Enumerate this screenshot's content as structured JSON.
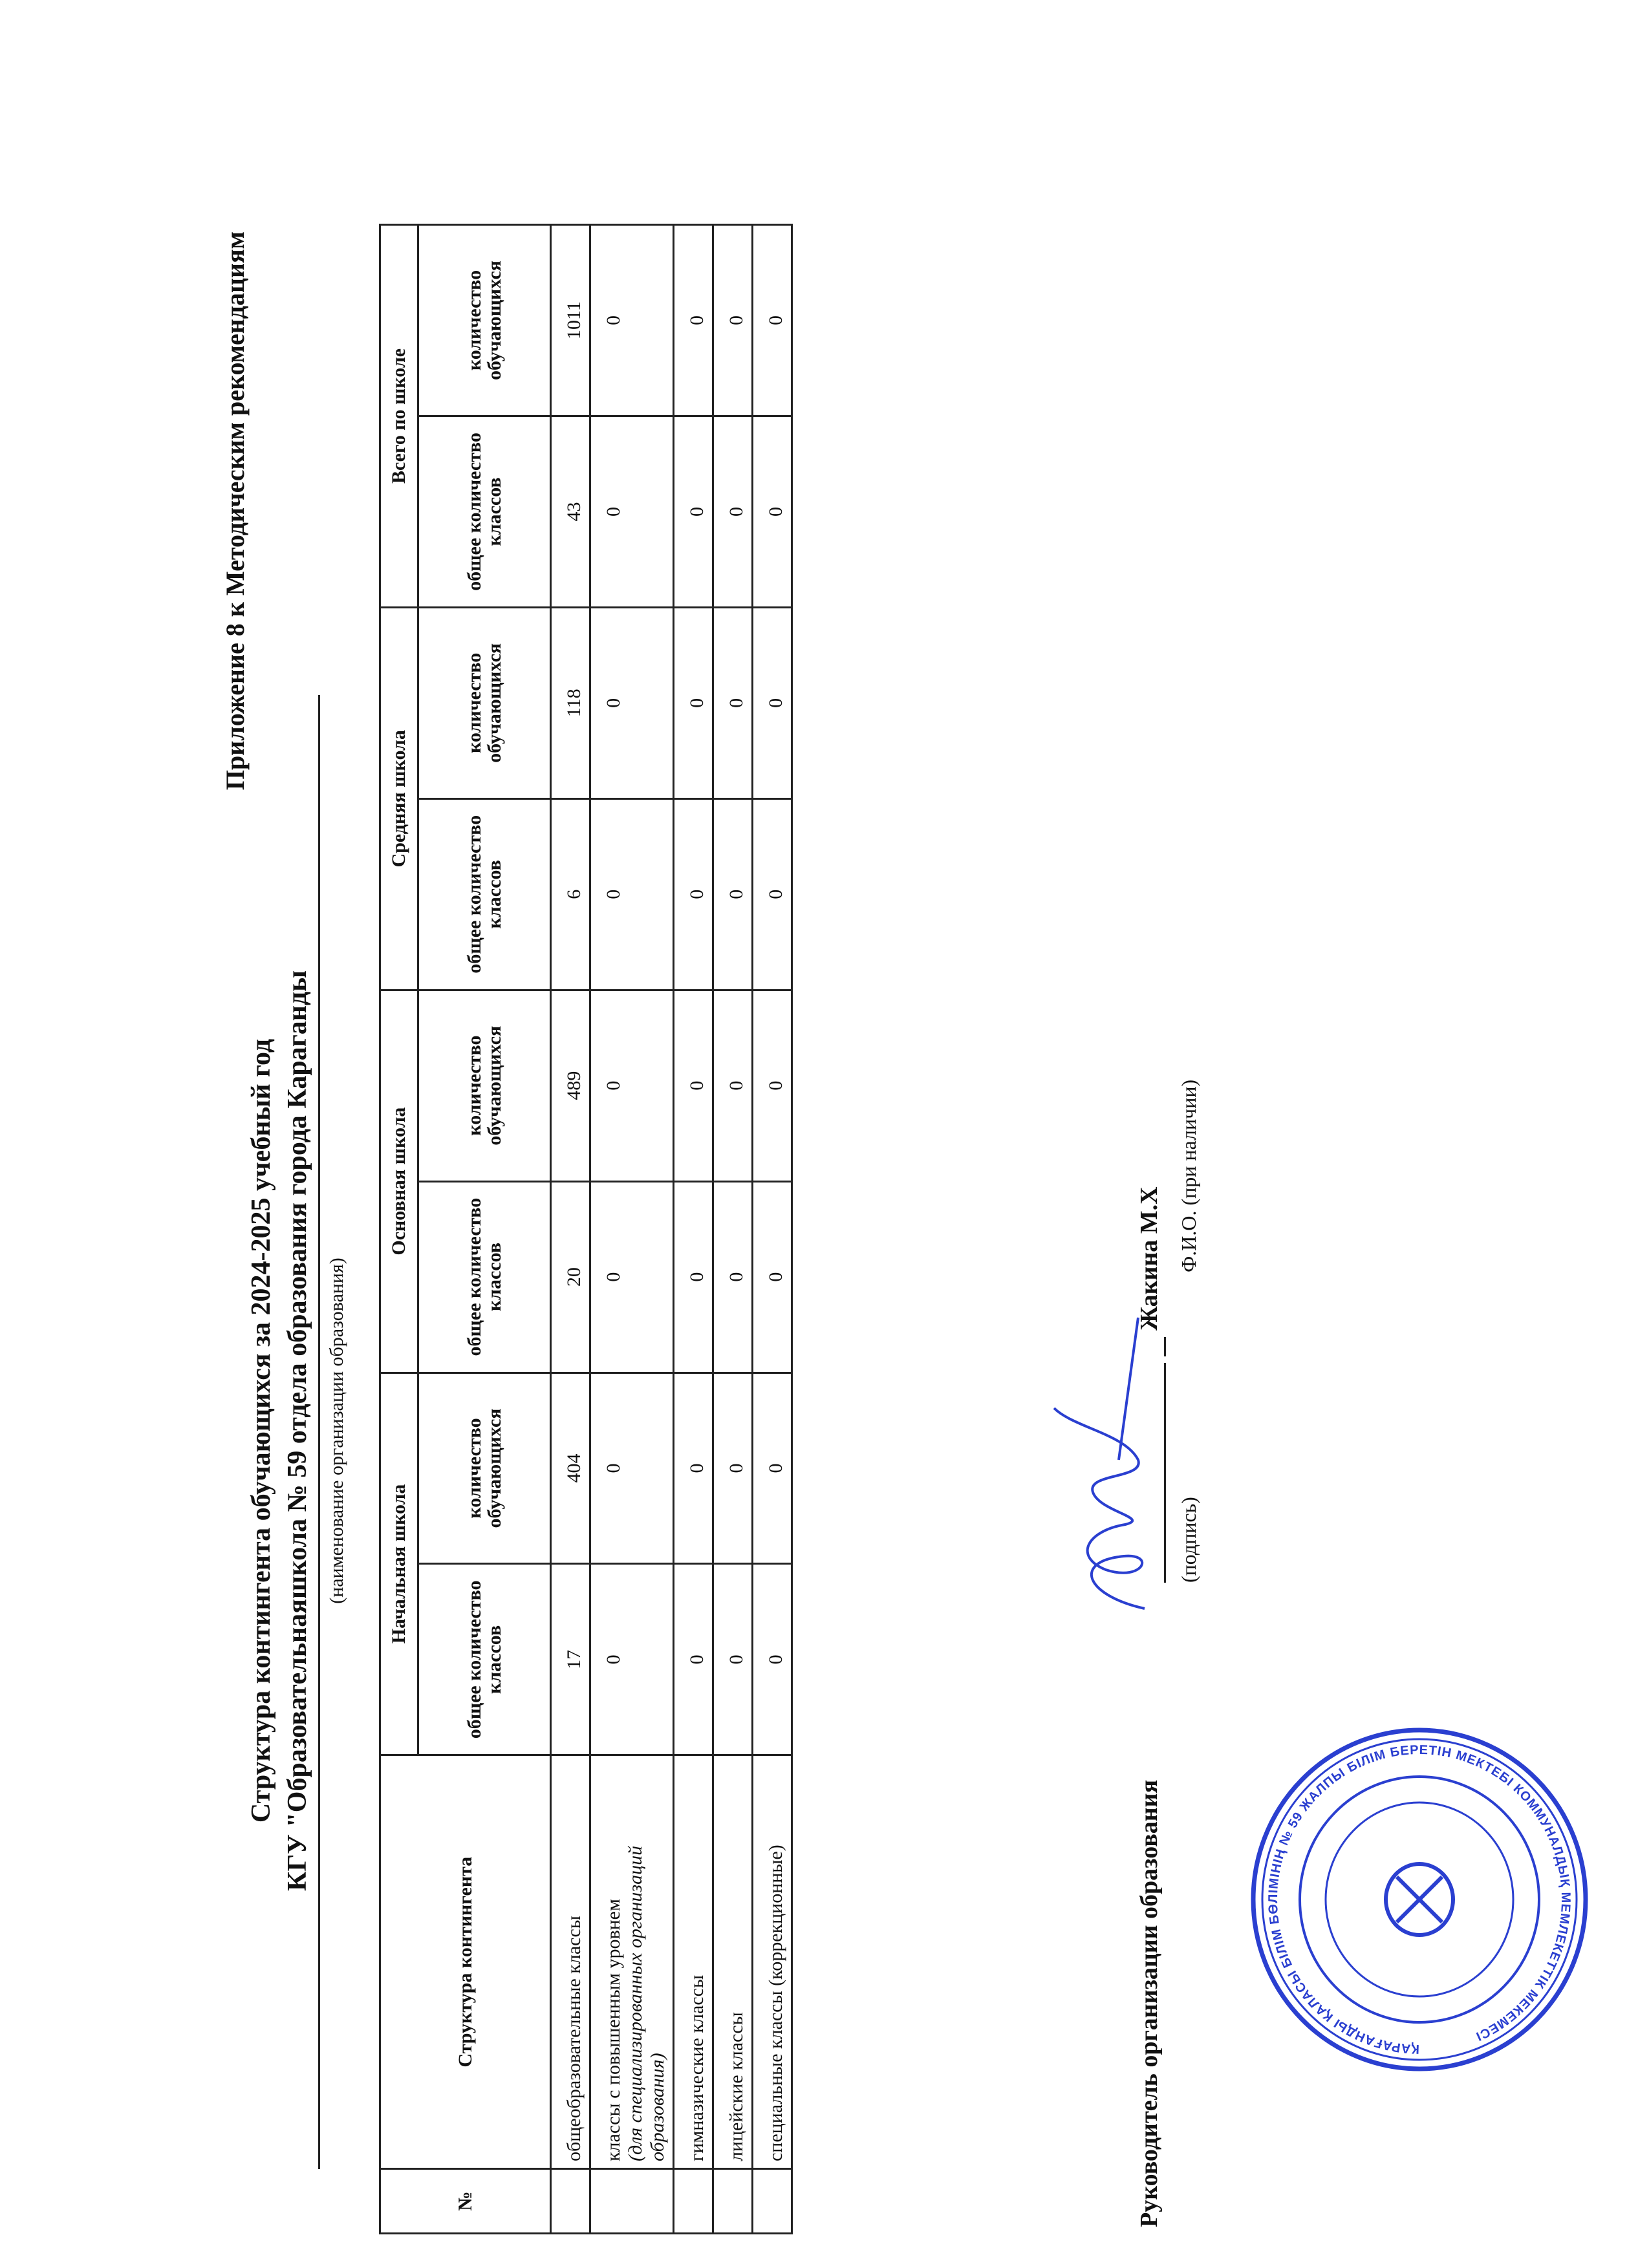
{
  "header": {
    "appendix": "Приложение 8 к Методическим рекомендациям",
    "title": "Структура контингента обучающихся за  2024-2025 учебный год",
    "organization": "КГУ \"Образовательнаяшкола № 59 отдела образования города Караганды",
    "organization_caption": "(наименование организации образования)"
  },
  "table": {
    "col_no": "№",
    "col_structure": "Структура контингента",
    "groups": [
      "Начальная школа",
      "Основная школа",
      "Средняя школа",
      "Всего по школе"
    ],
    "sub_classes": "общее количество классов",
    "sub_students": "количество обучающихся",
    "rows": [
      {
        "no": "",
        "label": "общеобразовательные классы",
        "note": "",
        "values": [
          "17",
          "404",
          "20",
          "489",
          "6",
          "118",
          "43",
          "1011"
        ]
      },
      {
        "no": "",
        "label": "классы с повышенным уровнем",
        "note": "(для специализированных организаций образования)",
        "values": [
          "0",
          "0",
          "0",
          "0",
          "0",
          "0",
          "0",
          "0"
        ]
      },
      {
        "no": "",
        "label": "гимназические классы",
        "note": "",
        "values": [
          "0",
          "0",
          "0",
          "0",
          "0",
          "0",
          "0",
          "0"
        ]
      },
      {
        "no": "",
        "label": "лицейские классы",
        "note": "",
        "values": [
          "0",
          "0",
          "0",
          "0",
          "0",
          "0",
          "0",
          "0"
        ]
      },
      {
        "no": "",
        "label": "специальные классы (коррекционные)",
        "note": "",
        "values": [
          "0",
          "0",
          "0",
          "0",
          "0",
          "0",
          "0",
          "0"
        ]
      }
    ]
  },
  "signature": {
    "role": "Руководитель организации образования",
    "name": "Жакина М.Х",
    "signature_caption": "(подпись)",
    "fio_caption": "Ф.И.О. (при наличии)"
  },
  "stamp": {
    "text": "ҚАРАҒАНДЫ ҚАЛАСЫ БІЛІМ БӨЛІМІНІҢ № 59 ЖАЛПЫ БІЛІМ БЕРЕТІН МЕКТЕБІ КОММУНАЛДЫҚ МЕМЛЕКЕТТІК МЕКЕМЕСІ",
    "color": "#2a3fd0"
  }
}
